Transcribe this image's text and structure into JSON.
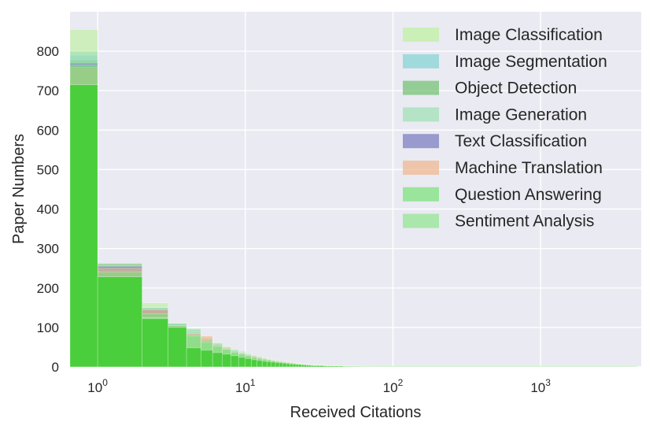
{
  "chart_data": {
    "type": "histogram",
    "title": "",
    "xlabel": "Received Citations",
    "ylabel": "Paper Numbers",
    "xscale": "log",
    "xlim": [
      0.65,
      4800
    ],
    "ylim": [
      0,
      900
    ],
    "y_ticks": [
      0,
      100,
      200,
      300,
      400,
      500,
      600,
      700,
      800
    ],
    "x_ticks": [
      {
        "value": 1,
        "base": "10",
        "exp": "0"
      },
      {
        "value": 10,
        "base": "10",
        "exp": "1"
      },
      {
        "value": 100,
        "base": "10",
        "exp": "2"
      },
      {
        "value": 1000,
        "base": "10",
        "exp": "3"
      }
    ],
    "grid": true,
    "legend_position": "top-right",
    "bin_edges": [
      0,
      1,
      2,
      3,
      4,
      5,
      6,
      7,
      8,
      9,
      10,
      11,
      12,
      13,
      14,
      15,
      16,
      17,
      18,
      19,
      20,
      21,
      22,
      23,
      24,
      25,
      26,
      27,
      28,
      29,
      30,
      32,
      34,
      36,
      38,
      40,
      43,
      46,
      50,
      55,
      60,
      70,
      80,
      100,
      130,
      200,
      400,
      1000,
      4500
    ],
    "series": [
      {
        "name": "Image Classification",
        "color": "#c2f0a8",
        "opacity": 0.7,
        "values": [
          855,
          262,
          162,
          112,
          95,
          75,
          62,
          52,
          45,
          40,
          35,
          30,
          27,
          24,
          21,
          19,
          17,
          15,
          14,
          13,
          12,
          11,
          10,
          9,
          8,
          7,
          7,
          6,
          6,
          5,
          5,
          4,
          4,
          4,
          3,
          3,
          3,
          2,
          2,
          2,
          2,
          1,
          1,
          1,
          1,
          1,
          1,
          1
        ]
      },
      {
        "name": "Image Segmentation",
        "color": "#8fd6d6",
        "opacity": 0.7,
        "values": [
          790,
          255,
          150,
          110,
          88,
          70,
          58,
          48,
          42,
          36,
          32,
          28,
          25,
          22,
          19,
          17,
          15,
          14,
          13,
          12,
          11,
          10,
          9,
          8,
          7,
          7,
          6,
          6,
          5,
          5,
          4,
          4,
          4,
          3,
          3,
          3,
          2,
          2,
          2,
          2,
          1,
          1,
          1,
          1,
          1,
          1,
          1,
          1
        ]
      },
      {
        "name": "Object Detection",
        "color": "#6fbf6f",
        "opacity": 0.6,
        "values": [
          778,
          262,
          148,
          108,
          85,
          68,
          57,
          48,
          41,
          35,
          31,
          27,
          24,
          21,
          19,
          17,
          15,
          14,
          12,
          11,
          10,
          9,
          8,
          8,
          7,
          6,
          6,
          5,
          5,
          4,
          4,
          4,
          3,
          3,
          3,
          2,
          2,
          2,
          2,
          1,
          1,
          1,
          1,
          1,
          1,
          1,
          1,
          1
        ]
      },
      {
        "name": "Image Generation",
        "color": "#9ddfb3",
        "opacity": 0.6,
        "values": [
          800,
          258,
          150,
          110,
          97,
          72,
          60,
          50,
          43,
          37,
          32,
          29,
          25,
          22,
          20,
          17,
          15,
          14,
          13,
          12,
          11,
          10,
          9,
          8,
          7,
          7,
          6,
          6,
          5,
          5,
          4,
          4,
          4,
          3,
          3,
          3,
          2,
          2,
          2,
          2,
          1,
          1,
          1,
          1,
          1,
          1,
          1,
          1
        ]
      },
      {
        "name": "Text Classification",
        "color": "#7d80c2",
        "opacity": 0.65,
        "values": [
          770,
          255,
          145,
          105,
          82,
          66,
          55,
          46,
          39,
          34,
          30,
          26,
          23,
          20,
          18,
          16,
          14,
          13,
          12,
          11,
          10,
          9,
          8,
          7,
          7,
          6,
          6,
          5,
          5,
          4,
          4,
          4,
          3,
          3,
          3,
          2,
          2,
          2,
          2,
          1,
          1,
          1,
          1,
          1,
          1,
          1,
          1,
          1
        ]
      },
      {
        "name": "Machine Translation",
        "color": "#f0b58c",
        "opacity": 0.6,
        "values": [
          760,
          250,
          145,
          105,
          85,
          78,
          56,
          47,
          40,
          35,
          30,
          27,
          24,
          21,
          19,
          17,
          16,
          15,
          13,
          12,
          11,
          10,
          9,
          8,
          7,
          7,
          6,
          6,
          5,
          5,
          4,
          4,
          4,
          3,
          3,
          3,
          2,
          2,
          2,
          2,
          1,
          1,
          1,
          1,
          1,
          1,
          1,
          1
        ]
      },
      {
        "name": "Question Answering",
        "color": "#78e278",
        "opacity": 0.6,
        "values": [
          765,
          240,
          135,
          105,
          80,
          64,
          53,
          45,
          38,
          33,
          29,
          25,
          22,
          20,
          18,
          16,
          14,
          13,
          12,
          11,
          10,
          9,
          8,
          7,
          7,
          6,
          6,
          5,
          5,
          4,
          4,
          4,
          3,
          3,
          3,
          2,
          2,
          2,
          2,
          1,
          1,
          1,
          1,
          1,
          1,
          1,
          1,
          1
        ]
      },
      {
        "name": "Sentiment Analysis",
        "color": "#8ee68e",
        "opacity": 0.6,
        "values": [
          715,
          228,
          125,
          100,
          78,
          62,
          52,
          44,
          37,
          32,
          28,
          24,
          21,
          19,
          17,
          15,
          13,
          12,
          11,
          10,
          9,
          8,
          7,
          7,
          6,
          6,
          5,
          5,
          4,
          4,
          4,
          3,
          3,
          3,
          2,
          2,
          2,
          2,
          1,
          1,
          1,
          1,
          1,
          1,
          1,
          1,
          1,
          1
        ]
      }
    ],
    "overlay": {
      "color": "#44cc33",
      "opacity": 0.9,
      "values": [
        715,
        228,
        122,
        100,
        48,
        42,
        36,
        32,
        28,
        24,
        21,
        18,
        16,
        14,
        13,
        12,
        11,
        10,
        9,
        8,
        7,
        7,
        6,
        6,
        5,
        5,
        4,
        4,
        3,
        3,
        3,
        3,
        2,
        2,
        2,
        2,
        2,
        1,
        1,
        1,
        1,
        1,
        1,
        1,
        1,
        1,
        1,
        1
      ]
    }
  }
}
